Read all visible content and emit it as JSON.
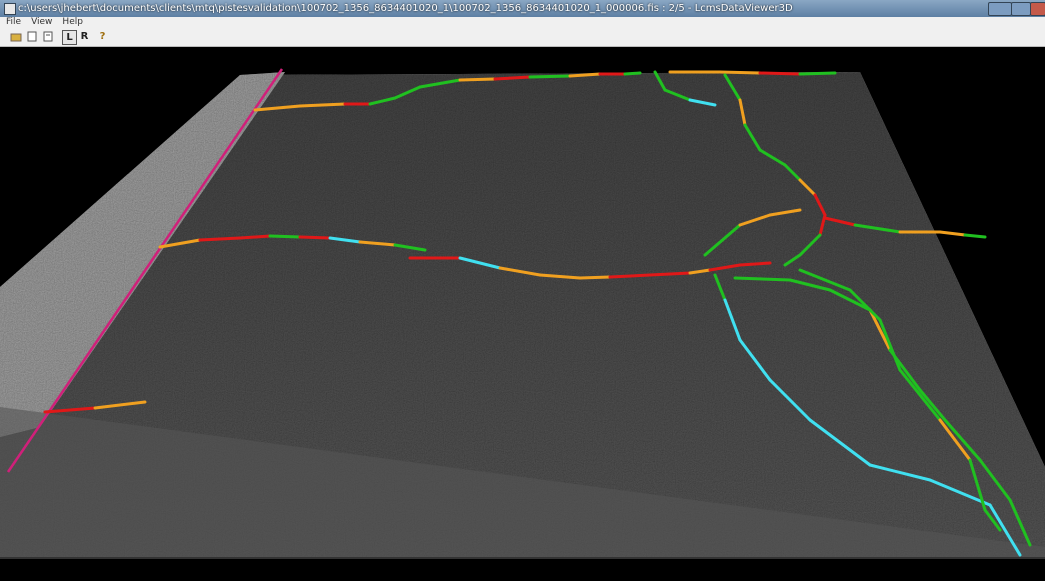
{
  "window": {
    "title": "c:\\users\\jhebert\\documents\\clients\\mtq\\pistesvalidation\\100702_1356_8634401020_1\\100702_1356_8634401020_1_000006.fis : 2/5 - LcmsDataViewer3D"
  },
  "menu": {
    "items": [
      "File",
      "View",
      "Help"
    ]
  },
  "toolbar": {
    "buttons": [
      "L",
      "R",
      "?"
    ]
  }
}
